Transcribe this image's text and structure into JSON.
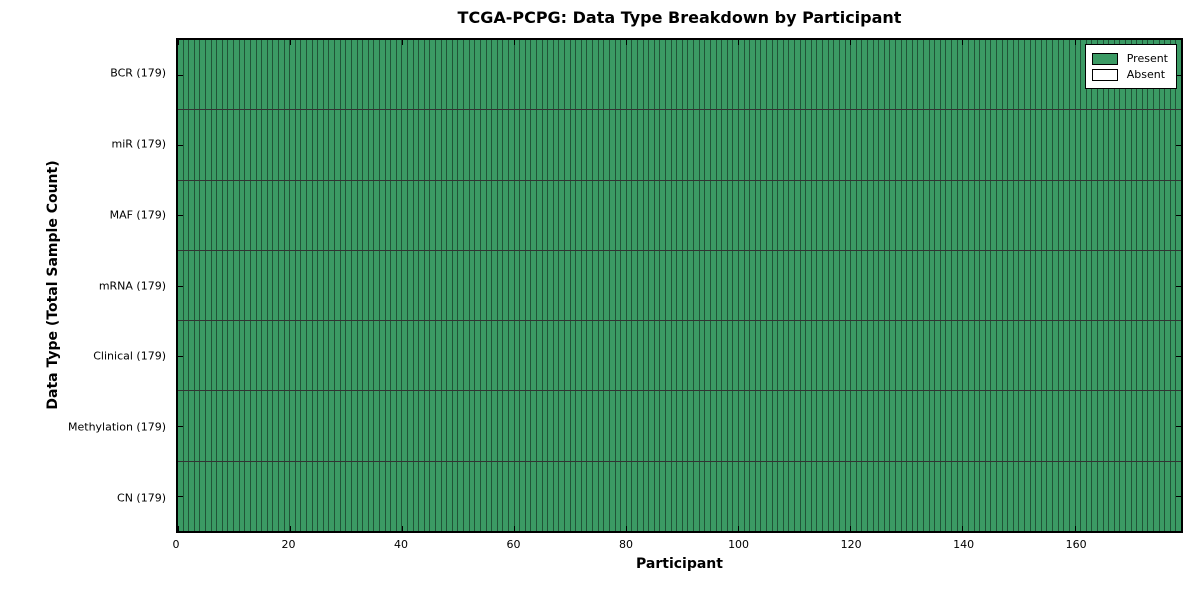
{
  "chart_data": {
    "type": "heatmap",
    "title": "TCGA-PCPG: Data Type Breakdown by Participant",
    "xlabel": "Participant",
    "ylabel": "Data Type (Total Sample Count)",
    "x_range": [
      0,
      179
    ],
    "n_participants": 179,
    "x_ticks": [
      0,
      20,
      40,
      60,
      80,
      100,
      120,
      140,
      160
    ],
    "rows": [
      {
        "label": "BCR (179)",
        "name": "BCR",
        "total": 179,
        "present_count": 179,
        "absent_count": 0
      },
      {
        "label": "miR (179)",
        "name": "miR",
        "total": 179,
        "present_count": 179,
        "absent_count": 0
      },
      {
        "label": "MAF (179)",
        "name": "MAF",
        "total": 179,
        "present_count": 179,
        "absent_count": 0
      },
      {
        "label": "mRNA (179)",
        "name": "mRNA",
        "total": 179,
        "present_count": 179,
        "absent_count": 0
      },
      {
        "label": "Clinical (179)",
        "name": "Clinical",
        "total": 179,
        "present_count": 179,
        "absent_count": 0
      },
      {
        "label": "Methylation (179)",
        "name": "Methylation",
        "total": 179,
        "present_count": 179,
        "absent_count": 0
      },
      {
        "label": "CN (179)",
        "name": "CN",
        "total": 179,
        "present_count": 179,
        "absent_count": 0
      }
    ],
    "legend": {
      "position": "upper right",
      "entries": [
        {
          "label": "Present",
          "color": "#3B9A64"
        },
        {
          "label": "Absent",
          "color": "#ffffff"
        }
      ]
    },
    "colors": {
      "present": "#3B9A64",
      "absent": "#ffffff",
      "cell_edge": "rgba(0,0,0,0.45)",
      "row_edge": "rgba(0,0,0,0.8)",
      "frame": "#000000",
      "background": "#ffffff"
    },
    "grid": true
  }
}
